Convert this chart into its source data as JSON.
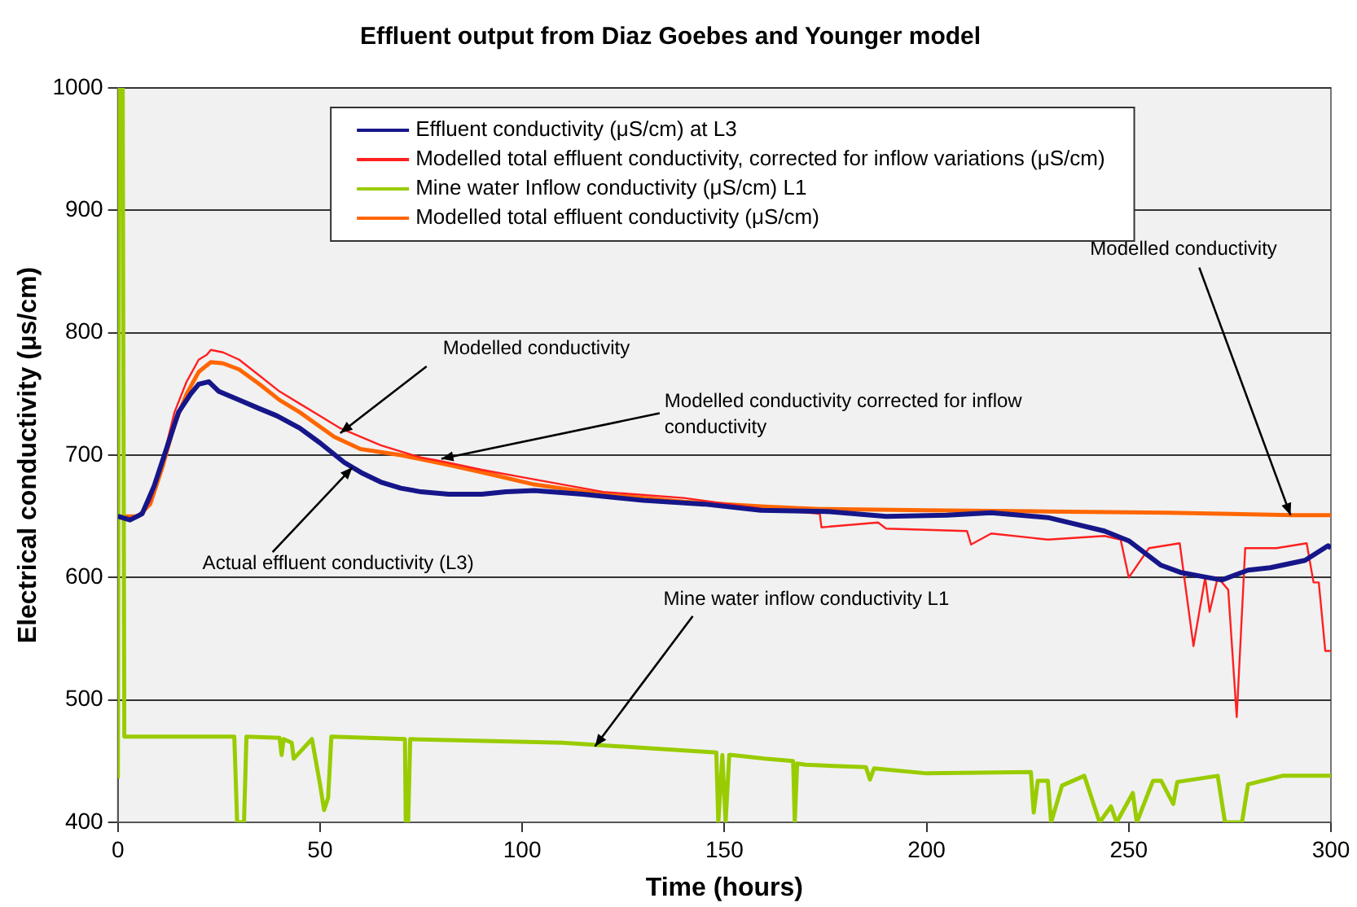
{
  "chart_data": {
    "type": "line",
    "title": "Effluent output from Diaz Goebes and Younger model",
    "xlabel": "Time (hours)",
    "ylabel": "Electrical conductivity (μs/cm)",
    "xlim": [
      0,
      300
    ],
    "xticks": [
      0,
      50,
      100,
      150,
      200,
      250,
      300
    ],
    "ylim": [
      400,
      1000
    ],
    "yticks": [
      400,
      500,
      600,
      700,
      800,
      900,
      1000
    ],
    "grid": "y",
    "legend": "top",
    "series": [
      {
        "name": "Effluent conductivity (μS/cm) at L3",
        "color": "#16168a",
        "x": [
          0,
          3,
          6,
          9,
          12,
          15,
          18,
          20,
          22.5,
          25,
          30,
          35,
          39.4,
          45,
          50,
          56,
          60.6,
          65,
          70,
          75,
          81.8,
          90,
          96,
          103,
          115,
          130,
          145,
          159,
          175,
          190,
          205,
          216,
          230,
          244,
          250,
          258,
          263,
          268,
          273,
          279.5,
          285,
          293.6,
          299.3,
          300
        ],
        "values": [
          650,
          647,
          652,
          675,
          705,
          735,
          750,
          758,
          760,
          752,
          745,
          738,
          732,
          722,
          710,
          694,
          685,
          678,
          673,
          670,
          668,
          668,
          670,
          671,
          668,
          663,
          660,
          655,
          654,
          650,
          651,
          653,
          649,
          638,
          630,
          610,
          604,
          601,
          598,
          606,
          608,
          614,
          626,
          624
        ]
      },
      {
        "name": "Modelled total effluent conductivity, corrected for inflow variations (μS/cm)",
        "color": "#ff2020",
        "x": [
          5,
          8,
          11,
          14,
          17,
          20,
          22,
          23,
          26,
          30,
          35,
          40,
          45,
          55,
          65,
          75,
          80,
          90,
          100,
          110,
          120,
          140,
          160,
          173.6,
          174,
          188,
          190,
          200,
          210,
          211,
          216,
          230,
          244,
          248,
          250,
          255,
          262.6,
          266,
          268.9,
          270,
          272,
          274.6,
          276.7,
          278.8,
          281,
          286.5,
          294,
          295.7,
          297,
          298.6,
          300
        ],
        "values": [
          650,
          662,
          695,
          735,
          760,
          778,
          782,
          786,
          784,
          778,
          765,
          752,
          742,
          722,
          708,
          698,
          695,
          688,
          682,
          676,
          670,
          665,
          656,
          652,
          641,
          645,
          640,
          639,
          638,
          627,
          636,
          631,
          634,
          631,
          600,
          624,
          628,
          544,
          600,
          572,
          600,
          590,
          486,
          624,
          624,
          624,
          628,
          596,
          596,
          540,
          540
        ]
      },
      {
        "name": "Mine water Inflow conductivity (μS/cm) L1",
        "color": "#99cc00",
        "x": [
          0,
          0.3,
          1.2,
          1.6,
          28.8,
          29.5,
          31.2,
          31.8,
          40,
          40.5,
          41,
          43,
          43.5,
          48,
          50,
          51,
          52,
          52.8,
          71,
          71.2,
          71.8,
          72.3,
          110,
          148,
          148.5,
          149.5,
          150.3,
          151.2,
          151.7,
          160,
          167,
          167.4,
          168,
          170,
          185,
          186,
          187,
          200,
          225.8,
          226.5,
          227.5,
          230,
          230.8,
          233.5,
          239,
          242.8,
          245.6,
          247,
          251,
          252,
          256,
          258,
          261,
          262,
          272,
          273.8,
          278,
          279.5,
          288,
          300
        ],
        "values": [
          436,
          1000,
          1000,
          470,
          470,
          400,
          400,
          470,
          469,
          455,
          468,
          465,
          452,
          468,
          431,
          410,
          420,
          470,
          468,
          400,
          400,
          468,
          465,
          457,
          400,
          455,
          400,
          455,
          455,
          452,
          450,
          400,
          448,
          447,
          445,
          435,
          444,
          440,
          441,
          408,
          434,
          434,
          400,
          430,
          438,
          400,
          413,
          400,
          424,
          400,
          434,
          434,
          415,
          433,
          438,
          400,
          400,
          431,
          438,
          438
        ]
      },
      {
        "name": "Modelled total effluent conductivity (μS/cm)",
        "color": "#ff6600",
        "x": [
          0,
          5,
          8,
          11,
          14,
          17,
          20,
          23,
          26,
          30,
          35,
          40,
          45,
          53.5,
          60,
          70,
          81.8,
          90,
          103,
          120,
          140,
          160,
          173.6,
          200,
          230,
          260,
          290.7,
          300
        ],
        "values": [
          650,
          650,
          660,
          690,
          725,
          750,
          768,
          776,
          775,
          770,
          758,
          745,
          735,
          715,
          705,
          700,
          692,
          686,
          676,
          668,
          662,
          658,
          656,
          655,
          654,
          653,
          651,
          651
        ]
      }
    ],
    "annotations": [
      {
        "text": "Modelled conductivity",
        "x": 55,
        "y": 718
      },
      {
        "text": "Modelled conductivity corrected for inflow conductivity",
        "x": 80,
        "y": 697
      },
      {
        "text": "Actual effluent conductivity (L3)",
        "x": 58,
        "y": 690
      },
      {
        "text": "Mine water inflow conductivity L1",
        "x": 118,
        "y": 462
      },
      {
        "text": "Modelled conductivity",
        "x": 290,
        "y": 651
      }
    ]
  }
}
